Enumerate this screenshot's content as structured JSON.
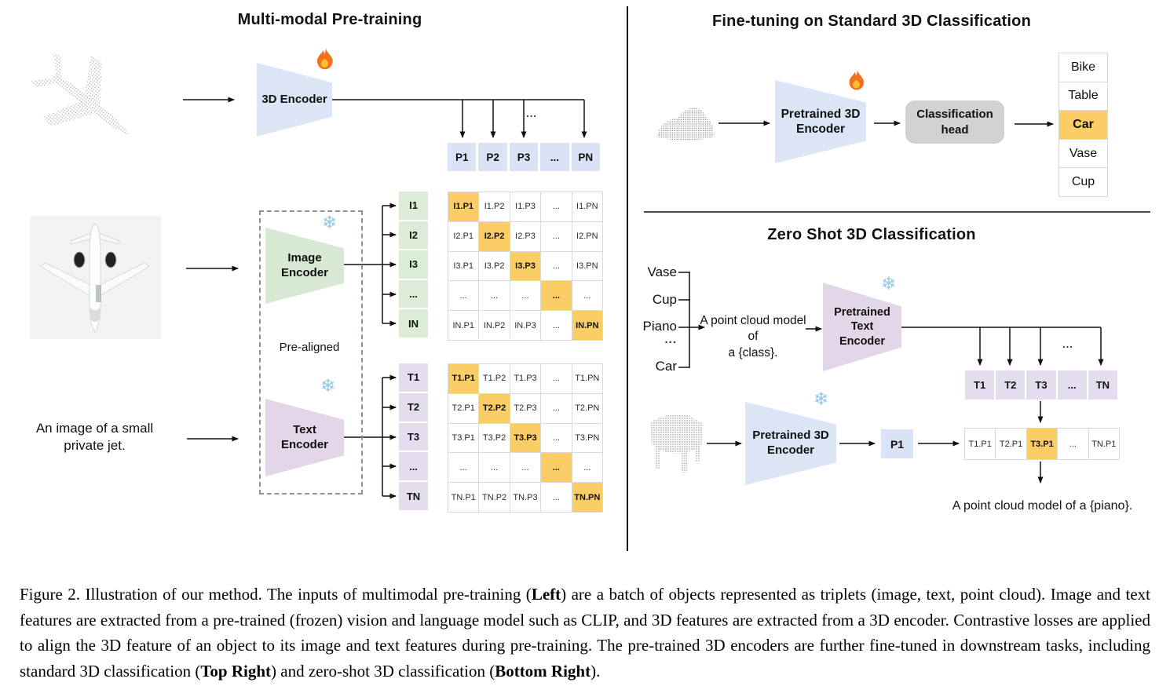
{
  "colors": {
    "point_blue": "#d9e3f5",
    "image_green": "#dcedd7",
    "text_purple": "#e4dded",
    "highlight_orange": "#fbcd67",
    "head_gray": "#d2d2d2"
  },
  "glyphs": {
    "ellipsis": "...",
    "snowflake": "❄"
  },
  "panels": {
    "pretraining": {
      "title": "Multi-modal Pre-training",
      "encoder_3d": "3D Encoder",
      "image_encoder": "Image\nEncoder",
      "text_encoder": "Text\nEncoder",
      "pre_aligned": "Pre-aligned",
      "image_caption": "An image of a small private jet.",
      "p_row": [
        "P1",
        "P2",
        "P3",
        "...",
        "PN"
      ],
      "image_rows": [
        "I1",
        "I2",
        "I3",
        "...",
        "IN"
      ],
      "image_matrix": [
        [
          "I1.P1",
          "I1.P2",
          "I1.P3",
          "...",
          "I1.PN"
        ],
        [
          "I2.P1",
          "I2.P2",
          "I2.P3",
          "...",
          "I2.PN"
        ],
        [
          "I3.P1",
          "I3.P2",
          "I3.P3",
          "...",
          "I3.PN"
        ],
        [
          "...",
          "...",
          "...",
          "...",
          "..."
        ],
        [
          "IN.P1",
          "IN.P2",
          "IN.P3",
          "...",
          "IN.PN"
        ]
      ],
      "text_rows": [
        "T1",
        "T2",
        "T3",
        "...",
        "TN"
      ],
      "text_matrix": [
        [
          "T1.P1",
          "T1.P2",
          "T1.P3",
          "...",
          "T1.PN"
        ],
        [
          "T2.P1",
          "T2.P2",
          "T2.P3",
          "...",
          "T2.PN"
        ],
        [
          "T3.P1",
          "T3.P2",
          "T3.P3",
          "...",
          "T3.PN"
        ],
        [
          "...",
          "...",
          "...",
          "...",
          "..."
        ],
        [
          "TN.P1",
          "TN.P2",
          "TN.P3",
          "...",
          "TN.PN"
        ]
      ]
    },
    "finetune": {
      "title": "Fine-tuning on Standard 3D Classification",
      "encoder": "Pretrained 3D\nEncoder",
      "head": "Classification\nhead",
      "classes": [
        "Bike",
        "Table",
        "Car",
        "Vase",
        "Cup"
      ],
      "predicted_class": "Car"
    },
    "zeroshot": {
      "title": "Zero Shot 3D Classification",
      "classes": [
        "Vase",
        "Cup",
        "Piano",
        "...",
        "Car"
      ],
      "prompt": "A point cloud model of\na {class}.",
      "text_encoder": "Pretrained Text\nEncoder",
      "encoder_3d": "Pretrained 3D\nEncoder",
      "p_cell": "P1",
      "t_row": [
        "T1",
        "T2",
        "T3",
        "...",
        "TN"
      ],
      "result_row": [
        "T1.P1",
        "T2.P1",
        "T3.P1",
        "...",
        "TN.P1"
      ],
      "result_highlight": "T3.P1",
      "result_caption": "A point cloud model of a {piano}."
    }
  },
  "caption": {
    "label": "Figure 2.",
    "segments": [
      {
        "text": "Figure 2. Illustration of our method.  The inputs of multimodal pre-training (",
        "bold": false
      },
      {
        "text": "Left",
        "bold": true
      },
      {
        "text": ") are a batch of objects represented as triplets (image, text, point cloud).  Image and text features are extracted from a pre-trained (frozen) vision and language model such as CLIP, and 3D features are extracted from a 3D encoder.  Contrastive losses are applied to align the 3D feature of an object to its image and text features during pre-training.  The pre-trained 3D encoders are further fine-tuned in downstream tasks, including standard 3D classification (",
        "bold": false
      },
      {
        "text": "Top Right",
        "bold": true
      },
      {
        "text": ") and zero-shot 3D classification (",
        "bold": false
      },
      {
        "text": "Bottom Right",
        "bold": true
      },
      {
        "text": ").",
        "bold": false
      }
    ]
  }
}
